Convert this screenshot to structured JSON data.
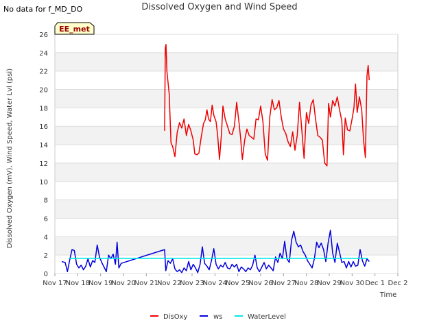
{
  "page": {
    "no_data_message": "No data for f_MD_DO"
  },
  "chart_data": {
    "type": "line",
    "title": "Dissolved Oxygen and Wind Speed",
    "xlabel": "Time",
    "ylabel": "Dissolved Oxygen (mV), Wind Speed, Water Lvl (psi)",
    "site_tag": "EE_met",
    "x_ticks": [
      {
        "day": 17,
        "label": "Nov 17"
      },
      {
        "day": 18,
        "label": "Nov 18"
      },
      {
        "day": 19,
        "label": "Nov 19"
      },
      {
        "day": 20,
        "label": "Nov 20"
      },
      {
        "day": 21,
        "label": "Nov 21"
      },
      {
        "day": 22,
        "label": "Nov 22"
      },
      {
        "day": 23,
        "label": "Nov 23"
      },
      {
        "day": 24,
        "label": "Nov 24"
      },
      {
        "day": 25,
        "label": "Nov 25"
      },
      {
        "day": 26,
        "label": "Nov 26"
      },
      {
        "day": 27,
        "label": "Nov 27"
      },
      {
        "day": 28,
        "label": "Nov 28"
      },
      {
        "day": 29,
        "label": "Nov 29"
      },
      {
        "day": 30,
        "label": "Nov 30"
      },
      {
        "day": 31,
        "label": "Dec 1"
      },
      {
        "day": 32,
        "label": "Dec 2"
      }
    ],
    "xlim": [
      17,
      32
    ],
    "ylim": [
      0,
      26
    ],
    "y_ticks": [
      0,
      2,
      4,
      6,
      8,
      10,
      12,
      14,
      16,
      18,
      20,
      22,
      24,
      26
    ],
    "grid": "horizontal",
    "legend_position": "bottom-center",
    "series": [
      {
        "name": "DisOxy",
        "color": "#ee0000",
        "points": [
          [
            21.8,
            15.5
          ],
          [
            21.83,
            24.5
          ],
          [
            21.86,
            24.9
          ],
          [
            21.9,
            22.0
          ],
          [
            22.0,
            19.5
          ],
          [
            22.08,
            14.2
          ],
          [
            22.15,
            13.8
          ],
          [
            22.25,
            12.7
          ],
          [
            22.35,
            15.3
          ],
          [
            22.45,
            16.4
          ],
          [
            22.55,
            15.8
          ],
          [
            22.65,
            16.8
          ],
          [
            22.75,
            15.0
          ],
          [
            22.85,
            16.2
          ],
          [
            22.95,
            15.5
          ],
          [
            23.05,
            14.5
          ],
          [
            23.12,
            13.0
          ],
          [
            23.22,
            12.9
          ],
          [
            23.3,
            13.1
          ],
          [
            23.4,
            14.8
          ],
          [
            23.5,
            16.3
          ],
          [
            23.58,
            16.7
          ],
          [
            23.65,
            17.8
          ],
          [
            23.72,
            16.8
          ],
          [
            23.8,
            16.5
          ],
          [
            23.88,
            18.3
          ],
          [
            23.95,
            17.2
          ],
          [
            24.05,
            16.5
          ],
          [
            24.12,
            15.0
          ],
          [
            24.2,
            12.4
          ],
          [
            24.28,
            15.0
          ],
          [
            24.35,
            18.2
          ],
          [
            24.45,
            16.8
          ],
          [
            24.55,
            16.0
          ],
          [
            24.65,
            15.2
          ],
          [
            24.75,
            15.1
          ],
          [
            24.85,
            16.0
          ],
          [
            24.95,
            18.6
          ],
          [
            25.05,
            16.5
          ],
          [
            25.12,
            14.8
          ],
          [
            25.2,
            12.4
          ],
          [
            25.3,
            14.5
          ],
          [
            25.4,
            15.7
          ],
          [
            25.5,
            15.0
          ],
          [
            25.6,
            14.8
          ],
          [
            25.7,
            14.6
          ],
          [
            25.8,
            16.8
          ],
          [
            25.9,
            16.7
          ],
          [
            26.0,
            18.2
          ],
          [
            26.1,
            16.5
          ],
          [
            26.2,
            13.0
          ],
          [
            26.3,
            12.3
          ],
          [
            26.4,
            17.0
          ],
          [
            26.5,
            18.9
          ],
          [
            26.6,
            17.8
          ],
          [
            26.7,
            18.0
          ],
          [
            26.8,
            18.8
          ],
          [
            26.9,
            17.0
          ],
          [
            27.0,
            15.7
          ],
          [
            27.1,
            15.2
          ],
          [
            27.2,
            14.3
          ],
          [
            27.3,
            13.8
          ],
          [
            27.4,
            15.4
          ],
          [
            27.5,
            13.4
          ],
          [
            27.6,
            15.0
          ],
          [
            27.7,
            18.6
          ],
          [
            27.8,
            15.6
          ],
          [
            27.9,
            12.5
          ],
          [
            28.0,
            17.5
          ],
          [
            28.1,
            16.3
          ],
          [
            28.2,
            18.3
          ],
          [
            28.3,
            18.9
          ],
          [
            28.4,
            16.8
          ],
          [
            28.5,
            15.0
          ],
          [
            28.6,
            14.8
          ],
          [
            28.7,
            14.5
          ],
          [
            28.8,
            12.0
          ],
          [
            28.9,
            11.7
          ],
          [
            28.97,
            18.5
          ],
          [
            29.05,
            17.0
          ],
          [
            29.15,
            18.8
          ],
          [
            29.25,
            18.2
          ],
          [
            29.35,
            19.2
          ],
          [
            29.45,
            17.8
          ],
          [
            29.55,
            16.6
          ],
          [
            29.62,
            12.9
          ],
          [
            29.7,
            16.9
          ],
          [
            29.8,
            15.6
          ],
          [
            29.9,
            15.5
          ],
          [
            30.0,
            16.8
          ],
          [
            30.08,
            18.0
          ],
          [
            30.15,
            20.6
          ],
          [
            30.22,
            17.5
          ],
          [
            30.32,
            19.2
          ],
          [
            30.42,
            17.8
          ],
          [
            30.5,
            14.5
          ],
          [
            30.58,
            12.6
          ],
          [
            30.65,
            21.5
          ],
          [
            30.7,
            22.6
          ],
          [
            30.75,
            21.0
          ]
        ]
      },
      {
        "name": "ws",
        "color": "#0000dd",
        "points": [
          [
            17.3,
            1.3
          ],
          [
            17.45,
            1.2
          ],
          [
            17.55,
            0.2
          ],
          [
            17.65,
            1.5
          ],
          [
            17.75,
            2.6
          ],
          [
            17.85,
            2.5
          ],
          [
            17.95,
            1.0
          ],
          [
            18.05,
            0.6
          ],
          [
            18.15,
            0.9
          ],
          [
            18.25,
            0.4
          ],
          [
            18.35,
            0.8
          ],
          [
            18.45,
            1.6
          ],
          [
            18.55,
            0.7
          ],
          [
            18.65,
            1.4
          ],
          [
            18.75,
            1.2
          ],
          [
            18.85,
            3.1
          ],
          [
            18.95,
            1.8
          ],
          [
            19.05,
            1.2
          ],
          [
            19.15,
            0.7
          ],
          [
            19.25,
            0.2
          ],
          [
            19.35,
            2.0
          ],
          [
            19.45,
            1.6
          ],
          [
            19.55,
            2.1
          ],
          [
            19.65,
            1.0
          ],
          [
            19.72,
            3.4
          ],
          [
            19.8,
            0.6
          ],
          [
            19.9,
            1.1
          ],
          [
            21.8,
            2.6
          ],
          [
            21.85,
            0.3
          ],
          [
            21.95,
            1.4
          ],
          [
            22.05,
            1.1
          ],
          [
            22.15,
            1.6
          ],
          [
            22.25,
            0.5
          ],
          [
            22.35,
            0.2
          ],
          [
            22.45,
            0.4
          ],
          [
            22.55,
            0.1
          ],
          [
            22.65,
            0.6
          ],
          [
            22.75,
            0.3
          ],
          [
            22.85,
            1.3
          ],
          [
            22.95,
            0.4
          ],
          [
            23.05,
            1.0
          ],
          [
            23.15,
            0.6
          ],
          [
            23.25,
            0.1
          ],
          [
            23.35,
            1.0
          ],
          [
            23.45,
            2.9
          ],
          [
            23.55,
            1.1
          ],
          [
            23.65,
            0.8
          ],
          [
            23.75,
            0.4
          ],
          [
            23.85,
            1.4
          ],
          [
            23.95,
            2.7
          ],
          [
            24.05,
            1.0
          ],
          [
            24.15,
            0.5
          ],
          [
            24.25,
            0.9
          ],
          [
            24.35,
            0.7
          ],
          [
            24.45,
            1.2
          ],
          [
            24.55,
            0.6
          ],
          [
            24.65,
            0.5
          ],
          [
            24.75,
            1.0
          ],
          [
            24.85,
            0.7
          ],
          [
            24.95,
            1.0
          ],
          [
            25.05,
            0.2
          ],
          [
            25.15,
            0.7
          ],
          [
            25.25,
            0.5
          ],
          [
            25.35,
            0.2
          ],
          [
            25.45,
            0.6
          ],
          [
            25.55,
            0.4
          ],
          [
            25.65,
            0.9
          ],
          [
            25.75,
            2.0
          ],
          [
            25.85,
            0.6
          ],
          [
            25.95,
            0.2
          ],
          [
            26.05,
            0.7
          ],
          [
            26.15,
            1.2
          ],
          [
            26.25,
            0.5
          ],
          [
            26.35,
            0.9
          ],
          [
            26.45,
            0.6
          ],
          [
            26.55,
            0.3
          ],
          [
            26.65,
            1.8
          ],
          [
            26.75,
            1.2
          ],
          [
            26.85,
            2.2
          ],
          [
            26.95,
            1.6
          ],
          [
            27.05,
            3.5
          ],
          [
            27.15,
            1.6
          ],
          [
            27.25,
            1.2
          ],
          [
            27.35,
            3.6
          ],
          [
            27.45,
            4.6
          ],
          [
            27.55,
            3.4
          ],
          [
            27.65,
            2.9
          ],
          [
            27.75,
            3.1
          ],
          [
            27.85,
            2.4
          ],
          [
            27.95,
            2.0
          ],
          [
            28.05,
            1.4
          ],
          [
            28.15,
            1.0
          ],
          [
            28.25,
            0.6
          ],
          [
            28.35,
            1.6
          ],
          [
            28.45,
            3.4
          ],
          [
            28.55,
            2.8
          ],
          [
            28.65,
            3.3
          ],
          [
            28.75,
            2.6
          ],
          [
            28.85,
            1.3
          ],
          [
            28.95,
            3.3
          ],
          [
            29.05,
            4.7
          ],
          [
            29.15,
            2.2
          ],
          [
            29.25,
            1.2
          ],
          [
            29.35,
            3.3
          ],
          [
            29.45,
            2.3
          ],
          [
            29.55,
            1.2
          ],
          [
            29.65,
            1.3
          ],
          [
            29.75,
            0.6
          ],
          [
            29.85,
            1.3
          ],
          [
            29.95,
            0.7
          ],
          [
            30.05,
            1.3
          ],
          [
            30.15,
            0.8
          ],
          [
            30.25,
            0.9
          ],
          [
            30.35,
            2.6
          ],
          [
            30.45,
            1.4
          ],
          [
            30.55,
            0.8
          ],
          [
            30.65,
            1.6
          ],
          [
            30.75,
            1.3
          ]
        ]
      },
      {
        "name": "WaterLevel",
        "color": "#00e8e8",
        "points": [
          [
            17.6,
            1.65
          ],
          [
            30.7,
            1.65
          ]
        ]
      }
    ]
  }
}
